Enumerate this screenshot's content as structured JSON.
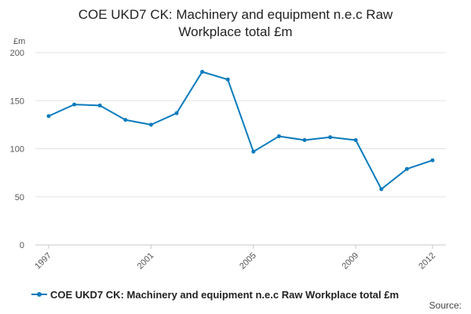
{
  "chart_data": {
    "type": "line",
    "title_lines": [
      "COE UKD7 CK: Machinery and equipment n.e.c Raw",
      "Workplace total £m"
    ],
    "y_unit": "£m",
    "xlabel": "",
    "ylabel": "",
    "x": [
      1997,
      1998,
      1999,
      2000,
      2001,
      2002,
      2003,
      2004,
      2005,
      2006,
      2007,
      2008,
      2009,
      2010,
      2011,
      2012
    ],
    "x_tick_labels": [
      "1997",
      "2001",
      "2005",
      "2009",
      "2012"
    ],
    "ylim": [
      0,
      200
    ],
    "y_tick_labels": [
      "0",
      "50",
      "100",
      "150",
      "200"
    ],
    "grid": true,
    "legend_position": "bottom-left",
    "series": [
      {
        "name": "COE UKD7 CK: Machinery and equipment n.e.c Raw Workplace total £m",
        "color": "#0a7bbd",
        "values": [
          134,
          146,
          145,
          130,
          125,
          137,
          180,
          172,
          97,
          113,
          109,
          112,
          109,
          58,
          79,
          88
        ]
      }
    ],
    "source_label": "Source:"
  }
}
